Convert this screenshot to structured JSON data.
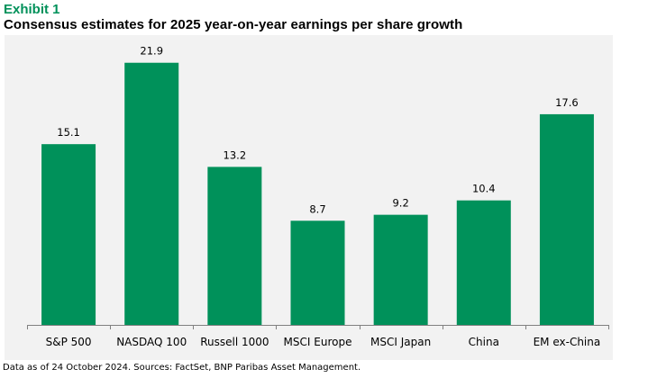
{
  "header": {
    "exhibit": "Exhibit 1",
    "title": "Consensus estimates for 2025 year-on-year earnings per share growth"
  },
  "footnote": "Data as of 24 October 2024. Sources: FactSet, BNP Paribas Asset Management.",
  "colors": {
    "bar": "#00915a",
    "background": "#f2f2f2",
    "axis": "#808080"
  },
  "chart_data": {
    "type": "bar",
    "title": "Consensus estimates for 2025 year-on-year earnings per share growth",
    "xlabel": "",
    "ylabel": "",
    "categories": [
      "S&P 500",
      "NASDAQ 100",
      "Russell 1000",
      "MSCI Europe",
      "MSCI Japan",
      "China",
      "EM ex-China"
    ],
    "values": [
      15.1,
      21.9,
      13.2,
      8.7,
      9.2,
      10.4,
      17.6
    ],
    "data_labels": [
      "15.1",
      "21.9",
      "13.2",
      "8.7",
      "9.2",
      "10.4",
      "17.6"
    ],
    "ylim": [
      0,
      22
    ],
    "grid": false,
    "legend": "none"
  }
}
